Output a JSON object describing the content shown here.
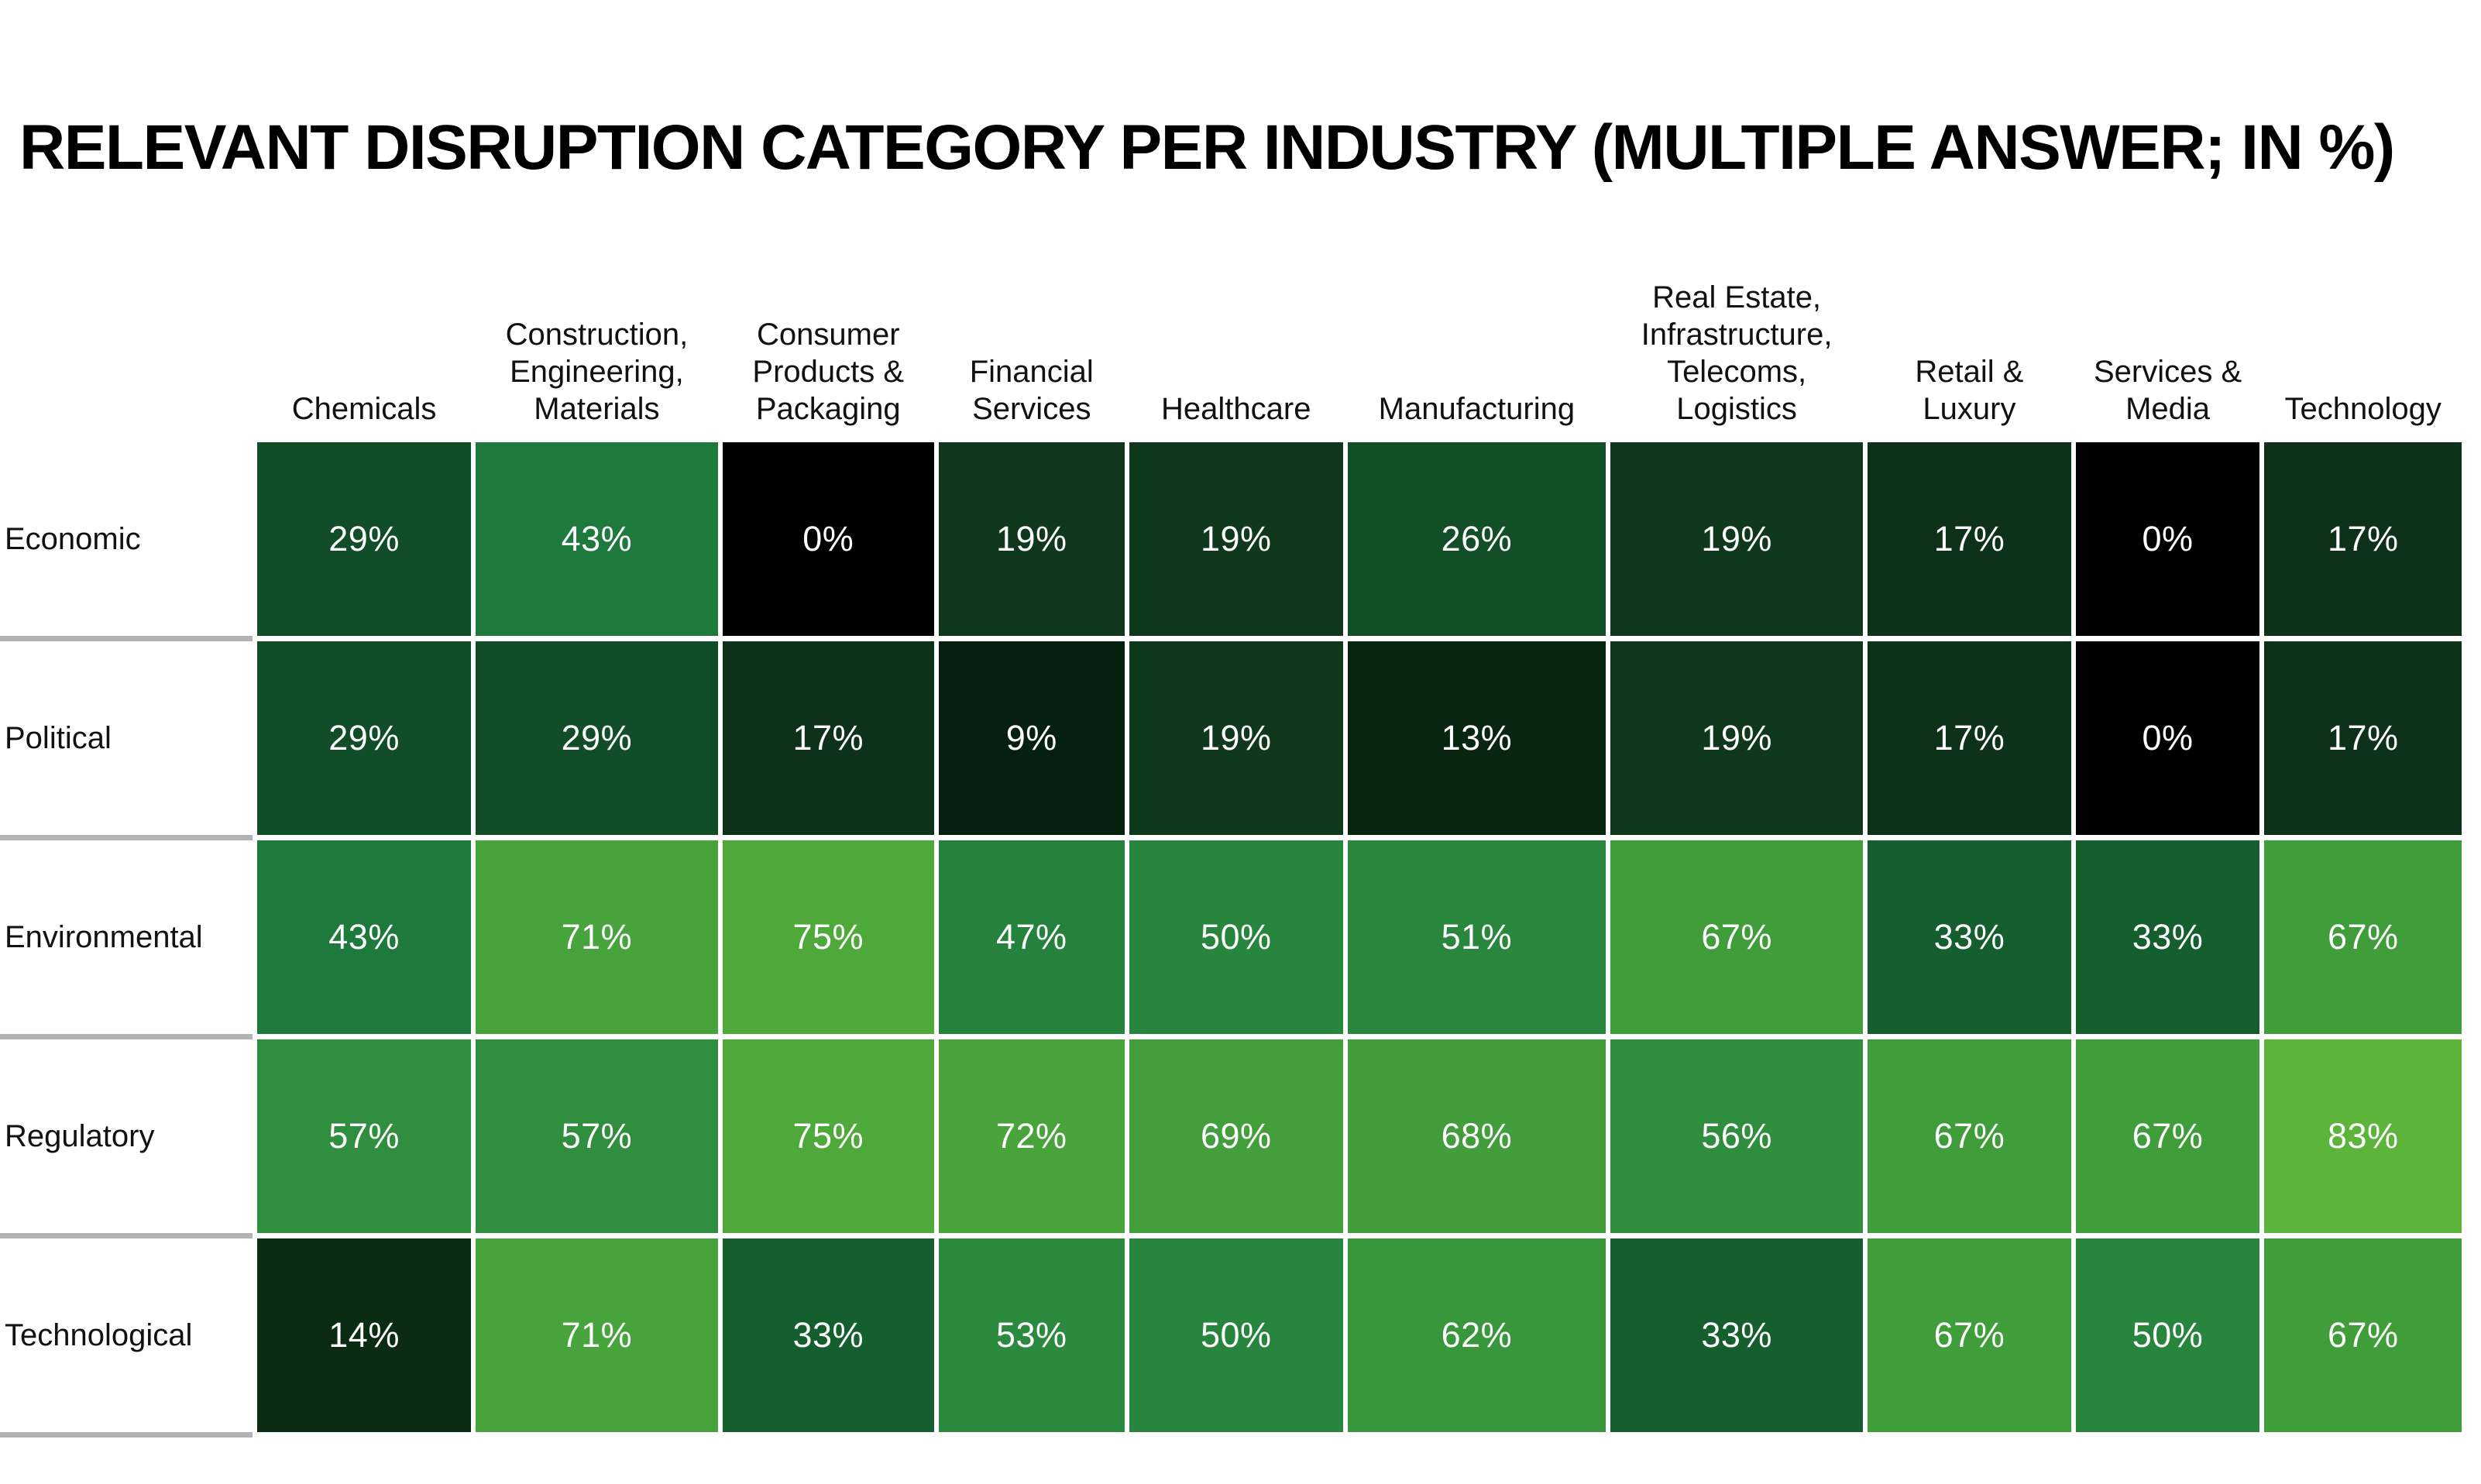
{
  "title": "RELEVANT DISRUPTION CATEGORY PER INDUSTRY (MULTIPLE ANSWER; IN %)",
  "chart_data": {
    "type": "heatmap",
    "unit": "%",
    "columns": [
      {
        "id": "chemicals",
        "lines": [
          "Chemicals"
        ]
      },
      {
        "id": "construction-engineering-materials",
        "lines": [
          "Construction,",
          "Engineering,",
          "Materials"
        ]
      },
      {
        "id": "consumer-products-packaging",
        "lines": [
          "Consumer",
          "Products &",
          "Packaging"
        ]
      },
      {
        "id": "financial-services",
        "lines": [
          "Financial",
          "Services"
        ]
      },
      {
        "id": "healthcare",
        "lines": [
          "Healthcare"
        ]
      },
      {
        "id": "manufacturing",
        "lines": [
          "Manufacturing"
        ]
      },
      {
        "id": "real-estate-infrastructure-telecoms-logistics",
        "lines": [
          "Real Estate,",
          "Infrastructure,",
          "Telecoms,",
          "Logistics"
        ]
      },
      {
        "id": "retail-luxury",
        "lines": [
          "Retail &",
          "Luxury"
        ]
      },
      {
        "id": "services-media",
        "lines": [
          "Services &",
          "Media"
        ]
      },
      {
        "id": "technology",
        "lines": [
          "Technology"
        ]
      }
    ],
    "rows": [
      {
        "id": "economic",
        "label": "Economic"
      },
      {
        "id": "political",
        "label": "Political"
      },
      {
        "id": "environmental",
        "label": "Environmental"
      },
      {
        "id": "regulatory",
        "label": "Regulatory"
      },
      {
        "id": "technological",
        "label": "Technological"
      }
    ],
    "values": [
      [
        29,
        43,
        0,
        19,
        19,
        26,
        19,
        17,
        0,
        17
      ],
      [
        29,
        29,
        17,
        9,
        19,
        13,
        19,
        17,
        0,
        17
      ],
      [
        43,
        71,
        75,
        47,
        50,
        51,
        67,
        33,
        33,
        67
      ],
      [
        57,
        57,
        75,
        72,
        69,
        68,
        56,
        67,
        67,
        83
      ],
      [
        14,
        71,
        33,
        53,
        50,
        62,
        33,
        67,
        50,
        67
      ]
    ],
    "palette": {
      "0": "#000000",
      "9": "#05200f",
      "13": "#08260f",
      "14": "#0b2b13",
      "17": "#0d3219",
      "19": "#0f381c",
      "26": "#124e27",
      "29": "#114d28",
      "33": "#155e2e",
      "43": "#1e7a3c",
      "47": "#24823c",
      "50": "#27853d",
      "51": "#29873d",
      "53": "#2b8a3d",
      "56": "#2e8e3d",
      "57": "#308f3e",
      "62": "#38973c",
      "67": "#3f9d3a",
      "68": "#419e3b",
      "69": "#429f3b",
      "71": "#47a33b",
      "72": "#48a43a",
      "75": "#4fa93a",
      "83": "#5cb43b"
    },
    "colors": {
      "cell_text": "#ffffff",
      "row_separator": "#b2b2b5",
      "title_text": "#000000",
      "label_text": "#111111",
      "background": "#ffffff"
    },
    "layout": {
      "legend": "none",
      "grid": "off",
      "value_labels": "on"
    }
  }
}
